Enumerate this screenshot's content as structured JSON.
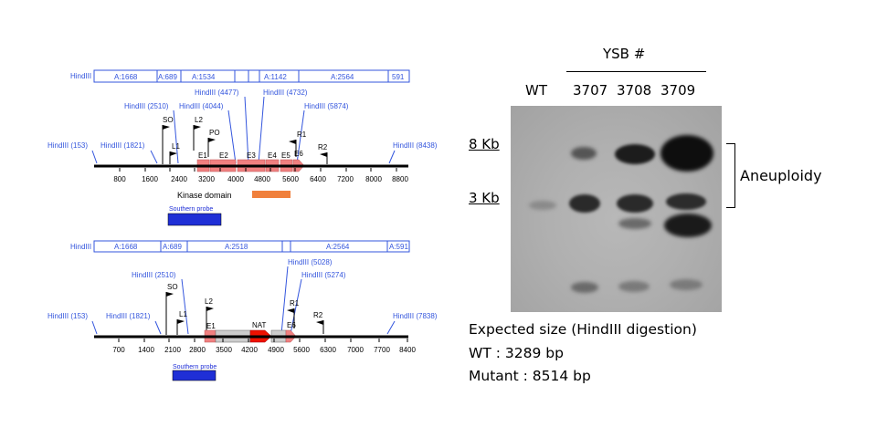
{
  "map1": {
    "restriction_bar": [
      {
        "label": "HindIII"
      },
      {
        "label": "A:1668"
      },
      {
        "label": "A:689"
      },
      {
        "label": "A:1534"
      },
      {
        "label": "A:1142"
      },
      {
        "label": "A:2564"
      },
      {
        "label": "591"
      }
    ],
    "site_labels": [
      "HindIII (153)",
      "HindIII (1821)",
      "HindIII (2510)",
      "HindIII (4044)",
      "HindIII (4477)",
      "HindIII (4732)",
      "HindIII (5874)",
      "HindIII (8438)"
    ],
    "primer_labels": [
      "SO",
      "L1",
      "L2",
      "PO",
      "R1",
      "R2"
    ],
    "exon_labels": [
      "E1",
      "E2",
      "E3",
      "E4",
      "E5",
      "E6"
    ],
    "axis_ticks": [
      "800",
      "1600",
      "2400",
      "3200",
      "4000",
      "4800",
      "5600",
      "6400",
      "7200",
      "8000",
      "8800"
    ],
    "kinase_label": "Kinase domain",
    "probe_label": "Southern probe"
  },
  "map2": {
    "restriction_bar": [
      {
        "label": "HindIII"
      },
      {
        "label": "A:1668"
      },
      {
        "label": "A:689"
      },
      {
        "label": "A:2518"
      },
      {
        "label": "A:2564"
      },
      {
        "label": "A:591"
      }
    ],
    "site_labels": [
      "HindIII (153)",
      "HindIII (1821)",
      "HindIII (2510)",
      "HindIII (5028)",
      "HindIII (5274)",
      "HindIII (7838)"
    ],
    "primer_labels": [
      "SO",
      "L1",
      "L2",
      "R1",
      "R2"
    ],
    "exon_labels": [
      "E1",
      "NAT",
      "E6"
    ],
    "axis_ticks": [
      "700",
      "1400",
      "2100",
      "2800",
      "3500",
      "4200",
      "4900",
      "5600",
      "6300",
      "7000",
      "7700",
      "8400"
    ],
    "probe_label": "Southern probe"
  },
  "blot": {
    "title": "YSB #",
    "lanes": [
      "WT",
      "3707",
      "3708",
      "3709"
    ],
    "size_markers": [
      "8 Kb",
      "3 Kb"
    ],
    "bracket_label": "Aneuploidy",
    "expected_title": "Expected size (HindIII digestion)",
    "expected_wt": "WT : 3289 bp",
    "expected_mutant": "Mutant : 8514 bp"
  },
  "colors": {
    "site_blue": "#3355dd",
    "exon_fill": "#f08080",
    "kinase_orange": "#f0803c",
    "probe_blue": "#1f2fd6",
    "nat_red": "#ee1100",
    "marker_gray": "#cccccc"
  }
}
